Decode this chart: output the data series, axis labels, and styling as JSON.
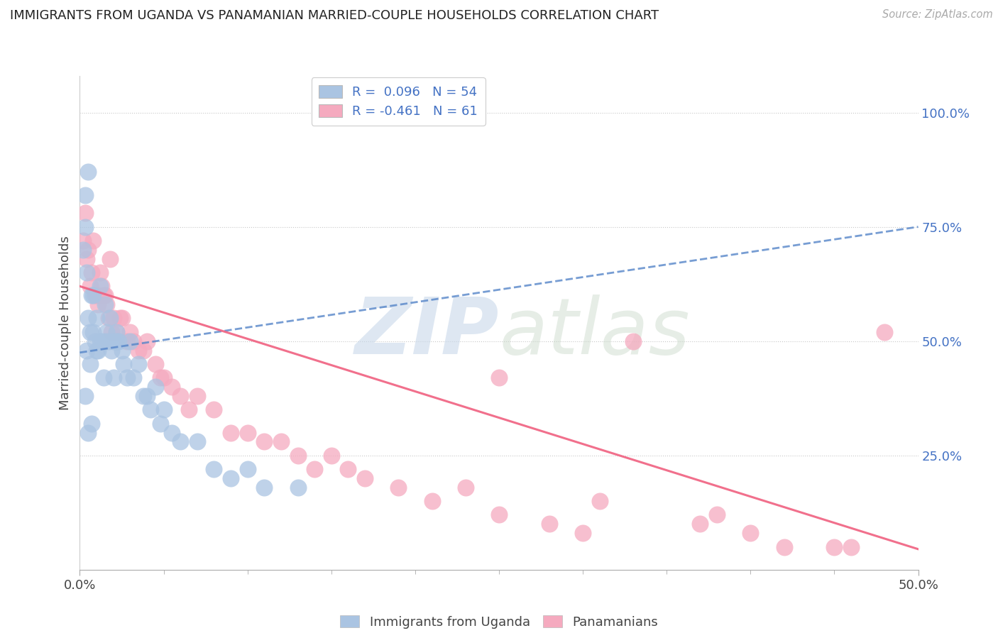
{
  "title": "IMMIGRANTS FROM UGANDA VS PANAMANIAN MARRIED-COUPLE HOUSEHOLDS CORRELATION CHART",
  "source": "Source: ZipAtlas.com",
  "ylabel": "Married-couple Households",
  "yticks_labels": [
    "100.0%",
    "75.0%",
    "50.0%",
    "25.0%"
  ],
  "ytick_vals": [
    1.0,
    0.75,
    0.5,
    0.25
  ],
  "xlim": [
    0.0,
    0.5
  ],
  "ylim": [
    0.0,
    1.08
  ],
  "r_blue": 0.096,
  "n_blue": 54,
  "r_pink": -0.461,
  "n_pink": 61,
  "legend_label_blue": "Immigrants from Uganda",
  "legend_label_pink": "Panamanians",
  "blue_color": "#aac4e2",
  "pink_color": "#f5aabf",
  "blue_line_color": "#5585c8",
  "pink_line_color": "#f06080",
  "blue_scatter_x": [
    0.002,
    0.003,
    0.003,
    0.004,
    0.004,
    0.005,
    0.005,
    0.005,
    0.006,
    0.006,
    0.007,
    0.007,
    0.008,
    0.008,
    0.009,
    0.01,
    0.01,
    0.011,
    0.012,
    0.012,
    0.013,
    0.014,
    0.015,
    0.015,
    0.016,
    0.017,
    0.018,
    0.019,
    0.02,
    0.02,
    0.022,
    0.022,
    0.023,
    0.025,
    0.026,
    0.028,
    0.03,
    0.032,
    0.035,
    0.038,
    0.04,
    0.042,
    0.045,
    0.048,
    0.05,
    0.055,
    0.06,
    0.07,
    0.08,
    0.09,
    0.1,
    0.11,
    0.13,
    0.003
  ],
  "blue_scatter_y": [
    0.7,
    0.75,
    0.38,
    0.65,
    0.48,
    0.87,
    0.55,
    0.3,
    0.52,
    0.45,
    0.6,
    0.32,
    0.6,
    0.52,
    0.5,
    0.55,
    0.48,
    0.48,
    0.62,
    0.5,
    0.5,
    0.42,
    0.58,
    0.5,
    0.52,
    0.5,
    0.55,
    0.48,
    0.5,
    0.42,
    0.5,
    0.52,
    0.5,
    0.48,
    0.45,
    0.42,
    0.5,
    0.42,
    0.45,
    0.38,
    0.38,
    0.35,
    0.4,
    0.32,
    0.35,
    0.3,
    0.28,
    0.28,
    0.22,
    0.2,
    0.22,
    0.18,
    0.18,
    0.82
  ],
  "pink_scatter_x": [
    0.002,
    0.003,
    0.004,
    0.005,
    0.006,
    0.007,
    0.008,
    0.009,
    0.01,
    0.011,
    0.012,
    0.013,
    0.014,
    0.015,
    0.016,
    0.017,
    0.018,
    0.019,
    0.02,
    0.022,
    0.024,
    0.025,
    0.028,
    0.03,
    0.032,
    0.035,
    0.038,
    0.04,
    0.045,
    0.048,
    0.05,
    0.055,
    0.06,
    0.065,
    0.07,
    0.08,
    0.09,
    0.1,
    0.11,
    0.13,
    0.15,
    0.16,
    0.17,
    0.19,
    0.21,
    0.23,
    0.25,
    0.28,
    0.3,
    0.33,
    0.37,
    0.4,
    0.42,
    0.45,
    0.12,
    0.14,
    0.25,
    0.31,
    0.38,
    0.46,
    0.48
  ],
  "pink_scatter_y": [
    0.72,
    0.78,
    0.68,
    0.7,
    0.62,
    0.65,
    0.72,
    0.6,
    0.6,
    0.58,
    0.65,
    0.62,
    0.6,
    0.6,
    0.58,
    0.55,
    0.68,
    0.52,
    0.55,
    0.52,
    0.55,
    0.55,
    0.5,
    0.52,
    0.5,
    0.48,
    0.48,
    0.5,
    0.45,
    0.42,
    0.42,
    0.4,
    0.38,
    0.35,
    0.38,
    0.35,
    0.3,
    0.3,
    0.28,
    0.25,
    0.25,
    0.22,
    0.2,
    0.18,
    0.15,
    0.18,
    0.12,
    0.1,
    0.08,
    0.5,
    0.1,
    0.08,
    0.05,
    0.05,
    0.28,
    0.22,
    0.42,
    0.15,
    0.12,
    0.05,
    0.52
  ]
}
